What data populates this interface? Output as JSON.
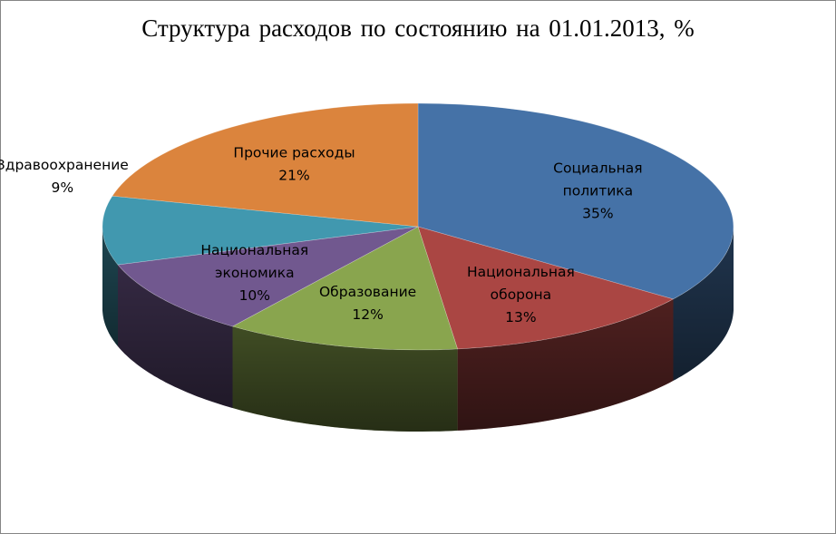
{
  "chart_data": {
    "type": "pie",
    "title": "Структура расходов по состоянию на 01.01.2013,  %",
    "slices": [
      {
        "label_lines": [
          "Социальная",
          "политика"
        ],
        "value": 35,
        "value_label": "35%",
        "color": "#4572A7",
        "label_position": "inside"
      },
      {
        "label_lines": [
          "Национальная",
          "оборона"
        ],
        "value": 13,
        "value_label": "13%",
        "color": "#AA4643",
        "label_position": "inside"
      },
      {
        "label_lines": [
          "Образование"
        ],
        "value": 12,
        "value_label": "12%",
        "color": "#89A54E",
        "label_position": "inside"
      },
      {
        "label_lines": [
          "Национальная",
          "экономика"
        ],
        "value": 10,
        "value_label": "10%",
        "color": "#71588F",
        "label_position": "inside"
      },
      {
        "label_lines": [
          "Здравоохранение"
        ],
        "value": 9,
        "value_label": "9%",
        "color": "#4198AF",
        "label_position": "outside"
      },
      {
        "label_lines": [
          "Прочие расходы"
        ],
        "value": 21,
        "value_label": "21%",
        "color": "#DB843D",
        "label_position": "inside"
      }
    ],
    "legend": "none",
    "style": "3d-pie"
  }
}
